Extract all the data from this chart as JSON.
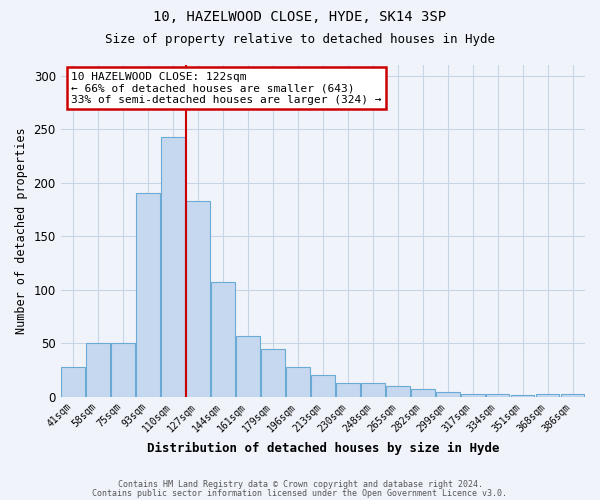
{
  "title1": "10, HAZELWOOD CLOSE, HYDE, SK14 3SP",
  "title2": "Size of property relative to detached houses in Hyde",
  "xlabel": "Distribution of detached houses by size in Hyde",
  "ylabel": "Number of detached properties",
  "categories": [
    "41sqm",
    "58sqm",
    "75sqm",
    "93sqm",
    "110sqm",
    "127sqm",
    "144sqm",
    "161sqm",
    "179sqm",
    "196sqm",
    "213sqm",
    "230sqm",
    "248sqm",
    "265sqm",
    "282sqm",
    "299sqm",
    "317sqm",
    "334sqm",
    "351sqm",
    "368sqm",
    "386sqm"
  ],
  "values": [
    28,
    50,
    50,
    190,
    243,
    183,
    107,
    57,
    45,
    28,
    20,
    13,
    13,
    10,
    7,
    4,
    3,
    3,
    2,
    3,
    3
  ],
  "bar_color": "#c5d8f0",
  "bar_edge_color": "#6aaad4",
  "red_line_x": 4.5,
  "annotation_line1": "10 HAZELWOOD CLOSE: 122sqm",
  "annotation_line2": "← 66% of detached houses are smaller (643)",
  "annotation_line3": "33% of semi-detached houses are larger (324) →",
  "annotation_box_color": "white",
  "annotation_box_edge_color": "#cc0000",
  "red_line_color": "#cc0000",
  "ylim": [
    0,
    310
  ],
  "yticks": [
    0,
    50,
    100,
    150,
    200,
    250,
    300
  ],
  "footer1": "Contains HM Land Registry data © Crown copyright and database right 2024.",
  "footer2": "Contains public sector information licensed under the Open Government Licence v3.0.",
  "background_color": "#f0f4fa",
  "grid_color": "#c8d4e8"
}
